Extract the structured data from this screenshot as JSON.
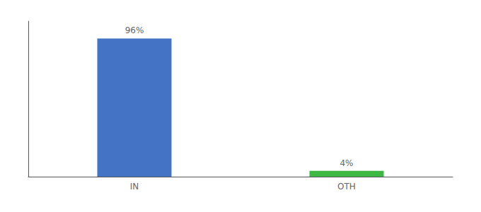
{
  "chart_data": {
    "type": "bar",
    "categories": [
      "IN",
      "OTH"
    ],
    "values": [
      96,
      4
    ],
    "value_labels": [
      "96%",
      "4%"
    ],
    "colors": [
      "#4472c4",
      "#3cb843"
    ],
    "ylim": [
      0,
      108
    ],
    "yticks": [],
    "tick_labels": "x",
    "grid": false,
    "data_labels": true
  }
}
